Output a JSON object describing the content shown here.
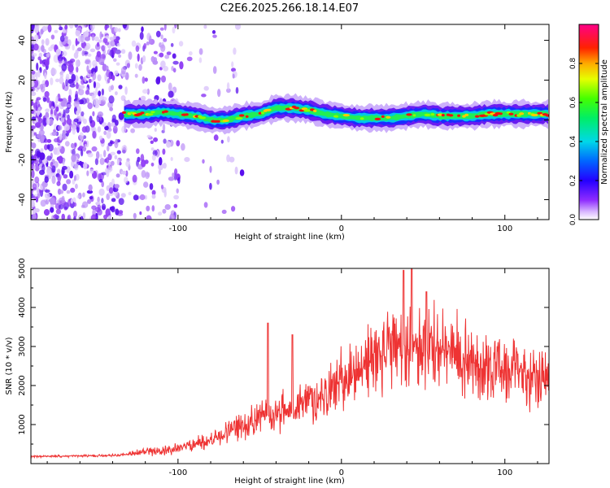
{
  "title": "C2E6.2025.266.18.14.E07",
  "chart_data": [
    {
      "type": "heatmap",
      "xlabel": "Height of straight line (km)",
      "ylabel": "Frequency (Hz)",
      "xlim": [
        -190,
        127
      ],
      "ylim": [
        -50,
        48
      ],
      "xticks": [
        -100,
        0,
        100
      ],
      "yticks": [
        -40,
        -20,
        0,
        20,
        40
      ],
      "colorbar": {
        "label": "Normalized spectral amplitude",
        "range": [
          0,
          1
        ],
        "ticks": [
          "0.0",
          "0.2",
          "0.4",
          "0.6",
          "0.8"
        ]
      },
      "ridge": {
        "x": [
          -133,
          -120,
          -110,
          -100,
          -90,
          -80,
          -70,
          -60,
          -50,
          -40,
          -30,
          -20,
          -10,
          0,
          10,
          20,
          30,
          40,
          50,
          60,
          70,
          80,
          90,
          100,
          110,
          127
        ],
        "freq": [
          3,
          3,
          4,
          3,
          2,
          0,
          0,
          2,
          3,
          6,
          6,
          5,
          3,
          2,
          1,
          1,
          1,
          2,
          3,
          2,
          2,
          2,
          3,
          3,
          3,
          3
        ]
      },
      "noise_region_x": [
        -190,
        -95
      ]
    },
    {
      "type": "line",
      "xlabel": "Height of straight line (km)",
      "ylabel": "SNR (10 * v/v)",
      "xlim": [
        -190,
        127
      ],
      "ylim": [
        0,
        5000
      ],
      "xticks": [
        -100,
        0,
        100
      ],
      "yticks": [
        1000,
        2000,
        3000,
        4000,
        5000
      ],
      "series": [
        {
          "name": "SNR",
          "color": "#ee3333",
          "x": [
            -190,
            -170,
            -150,
            -135,
            -120,
            -110,
            -100,
            -90,
            -80,
            -70,
            -60,
            -50,
            -40,
            -30,
            -20,
            -10,
            0,
            10,
            20,
            30,
            40,
            50,
            60,
            70,
            80,
            90,
            100,
            110,
            120,
            127
          ],
          "y": [
            180,
            190,
            200,
            220,
            300,
            300,
            400,
            500,
            600,
            800,
            1000,
            1200,
            1300,
            1400,
            1600,
            1800,
            2100,
            2400,
            2700,
            2900,
            3000,
            3000,
            2900,
            2800,
            2600,
            2500,
            2400,
            2300,
            2300,
            2300
          ]
        }
      ],
      "spikes": [
        {
          "x": -45,
          "y": 3600
        },
        {
          "x": -30,
          "y": 3300
        },
        {
          "x": 38,
          "y": 4950
        },
        {
          "x": 43,
          "y": 5000
        },
        {
          "x": 52,
          "y": 4400
        }
      ]
    }
  ]
}
